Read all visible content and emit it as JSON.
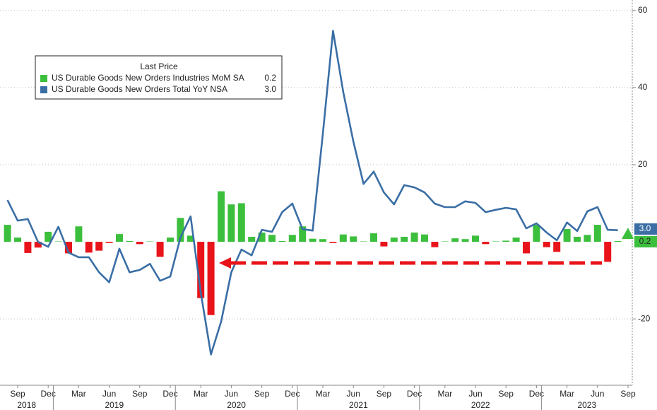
{
  "chart_data": {
    "type": "combo",
    "legend_title": "Last Price",
    "categories": [
      "2018-08",
      "2018-09",
      "2018-10",
      "2018-11",
      "2018-12",
      "2019-01",
      "2019-02",
      "2019-03",
      "2019-04",
      "2019-05",
      "2019-06",
      "2019-07",
      "2019-08",
      "2019-09",
      "2019-10",
      "2019-11",
      "2019-12",
      "2020-01",
      "2020-02",
      "2020-03",
      "2020-04",
      "2020-05",
      "2020-06",
      "2020-07",
      "2020-08",
      "2020-09",
      "2020-10",
      "2020-11",
      "2020-12",
      "2021-01",
      "2021-02",
      "2021-03",
      "2021-04",
      "2021-05",
      "2021-06",
      "2021-07",
      "2021-08",
      "2021-09",
      "2021-10",
      "2021-11",
      "2021-12",
      "2022-01",
      "2022-02",
      "2022-03",
      "2022-04",
      "2022-05",
      "2022-06",
      "2022-07",
      "2022-08",
      "2022-09",
      "2022-10",
      "2022-11",
      "2022-12",
      "2023-01",
      "2023-02",
      "2023-03",
      "2023-04",
      "2023-05",
      "2023-06",
      "2023-07",
      "2023-08"
    ],
    "series": [
      {
        "name": "US Durable Goods New Orders Industries MoM SA",
        "type": "bar",
        "color": "#3cbf3c",
        "negative_color": "#e8141a",
        "last_label": "0.2",
        "values": [
          4.4,
          1.1,
          -2.9,
          -1.5,
          2.6,
          0.1,
          -3.0,
          4.0,
          -2.8,
          -2.3,
          -0.3,
          2.0,
          0.2,
          -0.6,
          0.1,
          -3.9,
          1.1,
          6.2,
          1.6,
          -14.6,
          -19.0,
          13.1,
          9.7,
          10.0,
          1.3,
          2.4,
          1.8,
          0.2,
          1.8,
          4.0,
          0.8,
          0.7,
          -0.3,
          1.9,
          1.4,
          0.1,
          2.2,
          -1.2,
          1.1,
          1.3,
          2.4,
          1.9,
          -1.4,
          0.1,
          0.9,
          0.7,
          1.6,
          -0.6,
          0.1,
          0.3,
          1.1,
          -3.0,
          4.4,
          -1.4,
          -2.6,
          3.3,
          1.3,
          1.8,
          4.4,
          -5.2,
          0.2
        ]
      },
      {
        "name": "US Durable Goods New Orders Total YoY NSA",
        "type": "line",
        "color": "#3a6ea5",
        "last_label": "3.0",
        "values": [
          10.8,
          5.5,
          5.9,
          0.0,
          -1.3,
          3.9,
          -2.8,
          -4.0,
          -4.0,
          -7.9,
          -10.5,
          -1.8,
          -7.9,
          -7.3,
          -5.7,
          -10.1,
          -9.0,
          1.1,
          6.6,
          -13.2,
          -29.2,
          -20.7,
          -7.9,
          -2.0,
          -3.5,
          3.1,
          2.6,
          7.7,
          9.9,
          3.3,
          2.9,
          28.0,
          54.7,
          38.9,
          26.0,
          15.0,
          18.2,
          12.8,
          9.7,
          14.7,
          14.1,
          12.8,
          9.9,
          9.0,
          9.0,
          10.5,
          10.1,
          7.7,
          8.3,
          8.8,
          8.4,
          3.5,
          4.8,
          2.4,
          0.4,
          5.0,
          2.8,
          7.9,
          9.0,
          3.1,
          3.0
        ]
      }
    ],
    "ylim": [
      -37.2,
      62.7
    ],
    "yticks": [
      -20,
      20,
      40,
      60
    ],
    "grid": true,
    "xticks": [
      {
        "value": "2018-09",
        "label": "Sep"
      },
      {
        "value": "2018-12",
        "label": "Dec"
      },
      {
        "value": "2019-03",
        "label": "Mar"
      },
      {
        "value": "2019-06",
        "label": "Jun"
      },
      {
        "value": "2019-09",
        "label": "Sep"
      },
      {
        "value": "2019-12",
        "label": "Dec"
      },
      {
        "value": "2020-03",
        "label": "Mar"
      },
      {
        "value": "2020-06",
        "label": "Jun"
      },
      {
        "value": "2020-09",
        "label": "Sep"
      },
      {
        "value": "2020-12",
        "label": "Dec"
      },
      {
        "value": "2021-03",
        "label": "Mar"
      },
      {
        "value": "2021-06",
        "label": "Jun"
      },
      {
        "value": "2021-09",
        "label": "Sep"
      },
      {
        "value": "2021-12",
        "label": "Dec"
      },
      {
        "value": "2022-03",
        "label": "Mar"
      },
      {
        "value": "2022-06",
        "label": "Jun"
      },
      {
        "value": "2022-09",
        "label": "Sep"
      },
      {
        "value": "2022-12",
        "label": "Dec"
      },
      {
        "value": "2023-03",
        "label": "Mar"
      },
      {
        "value": "2023-06",
        "label": "Jun"
      },
      {
        "value": "2023-09",
        "label": "Sep"
      }
    ],
    "years": [
      2018,
      2019,
      2020,
      2021,
      2022,
      2023
    ]
  }
}
